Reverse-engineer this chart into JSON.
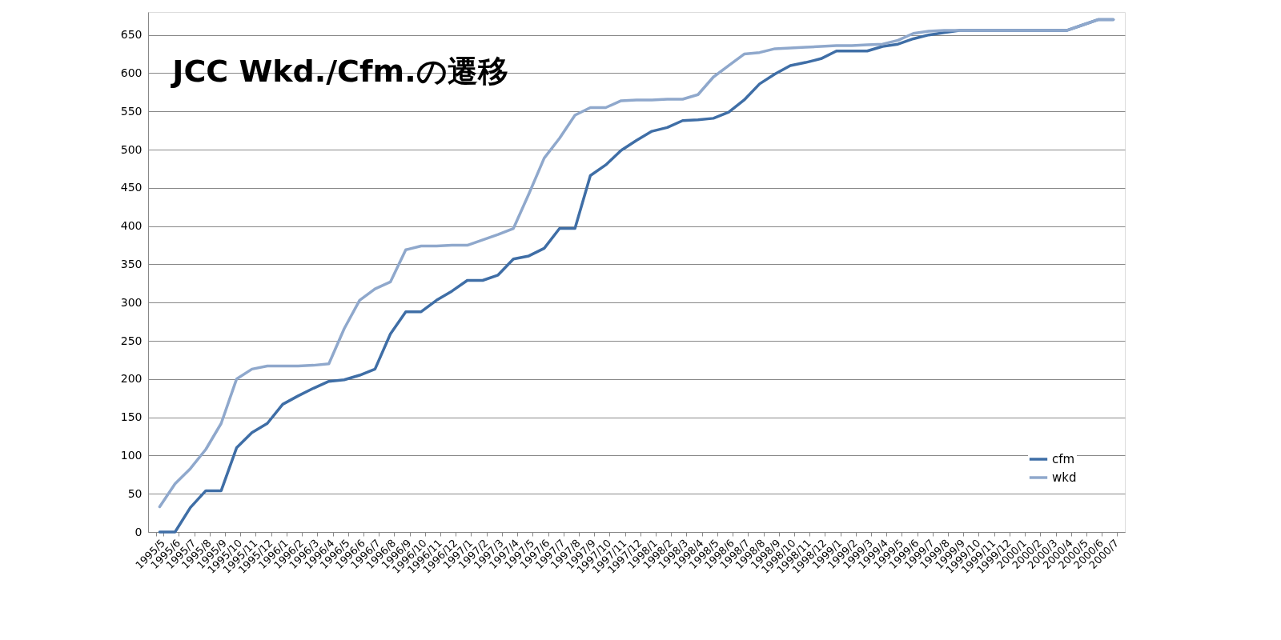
{
  "chart_data": {
    "type": "line",
    "title": "JCC Wkd./Cfm.の遷移",
    "categories": [
      "1995/5",
      "1995/6",
      "1995/7",
      "1995/8",
      "1995/9",
      "1995/10",
      "1995/11",
      "1995/12",
      "1996/1",
      "1996/2",
      "1996/3",
      "1996/4",
      "1996/5",
      "1996/6",
      "1996/7",
      "1996/8",
      "1996/9",
      "1996/10",
      "1996/11",
      "1996/12",
      "1997/1",
      "1997/2",
      "1997/3",
      "1997/4",
      "1997/5",
      "1997/6",
      "1997/7",
      "1997/8",
      "1997/9",
      "1997/10",
      "1997/11",
      "1997/12",
      "1998/1",
      "1998/2",
      "1998/3",
      "1998/4",
      "1998/5",
      "1998/6",
      "1998/7",
      "1998/8",
      "1998/9",
      "1998/10",
      "1998/11",
      "1998/12",
      "1999/1",
      "1999/2",
      "1999/3",
      "1999/4",
      "1999/5",
      "1999/6",
      "1999/7",
      "1999/8",
      "1999/9",
      "1999/10",
      "1999/11",
      "1999/12",
      "2000/1",
      "2000/2",
      "2000/3",
      "2000/4",
      "2000/5",
      "2000/6",
      "2000/7"
    ],
    "series": [
      {
        "name": "cfm",
        "color": "#3f6ea6",
        "values": [
          0,
          0,
          32,
          54,
          54,
          110,
          130,
          142,
          167,
          178,
          188,
          197,
          199,
          205,
          213,
          259,
          288,
          288,
          303,
          315,
          329,
          329,
          336,
          357,
          361,
          371,
          397,
          397,
          466,
          480,
          499,
          512,
          524,
          529,
          538,
          539,
          541,
          549,
          565,
          586,
          599,
          610,
          614,
          619,
          629,
          629,
          629,
          635,
          638,
          645,
          650,
          653,
          656,
          656,
          656,
          656,
          656,
          656,
          656,
          656,
          663,
          670,
          670
        ]
      },
      {
        "name": "wkd",
        "color": "#8fa8cc",
        "values": [
          33,
          63,
          83,
          108,
          142,
          200,
          213,
          217,
          217,
          217,
          218,
          220,
          266,
          303,
          318,
          327,
          369,
          374,
          374,
          375,
          375,
          382,
          389,
          397,
          442,
          489,
          515,
          545,
          555,
          555,
          564,
          565,
          565,
          566,
          566,
          572,
          595,
          610,
          625,
          627,
          632,
          633,
          634,
          635,
          636,
          636,
          637,
          638,
          643,
          652,
          655,
          656,
          656,
          656,
          656,
          656,
          656,
          656,
          656,
          656,
          663,
          670,
          670
        ]
      }
    ],
    "ylim": [
      0,
      680
    ],
    "yticks": [
      0,
      50,
      100,
      150,
      200,
      250,
      300,
      350,
      400,
      450,
      500,
      550,
      600,
      650
    ],
    "grid": "y",
    "legend": "bottom right",
    "marker": "none",
    "line_style": "solid"
  }
}
